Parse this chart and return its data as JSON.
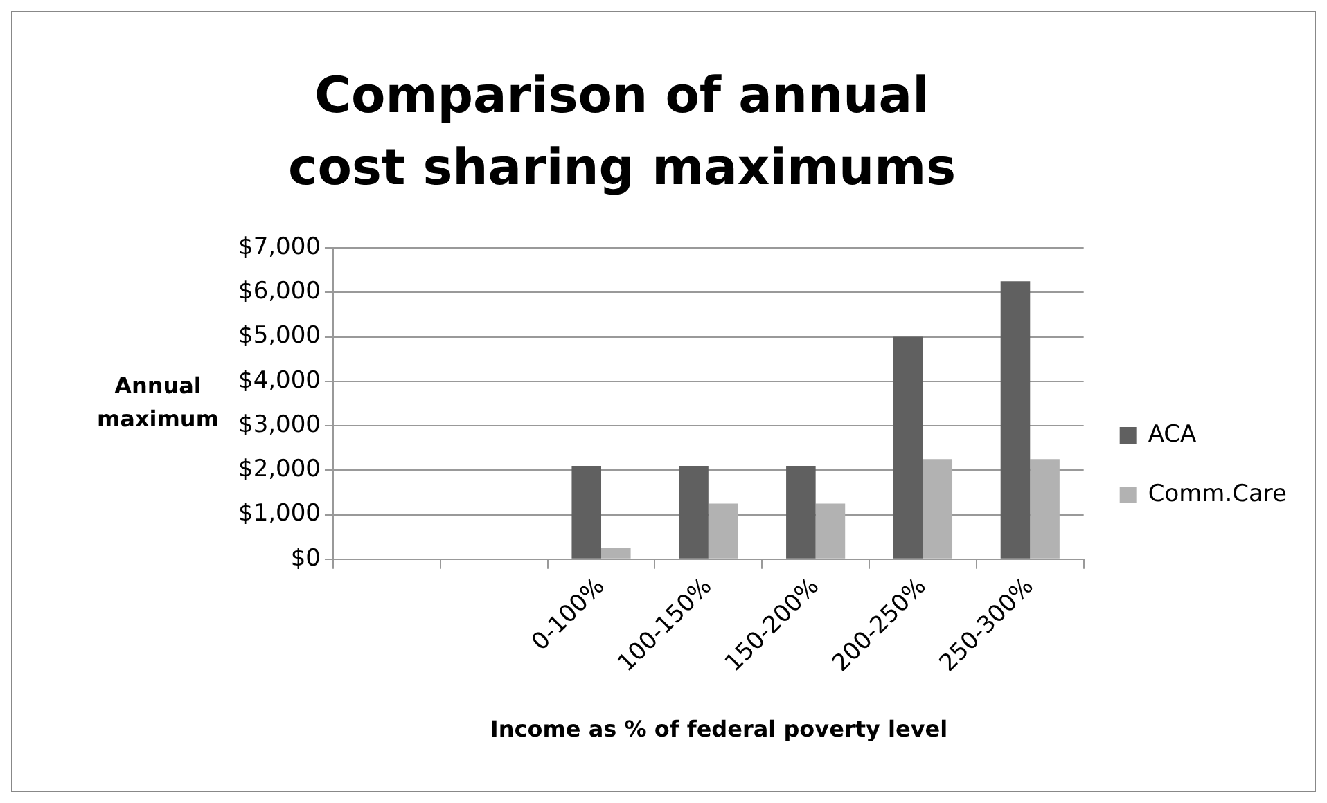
{
  "chart_data": {
    "type": "bar",
    "title": "Comparison of annual cost sharing maximums",
    "xlabel": "Income as % of federal poverty level",
    "ylabel": "Annual maximum",
    "categories": [
      null,
      null,
      "0-100%",
      "100-150%",
      "150-200%",
      "200-250%",
      "250-300%"
    ],
    "series": [
      {
        "name": "ACA",
        "color": "#606060",
        "values": [
          null,
          null,
          2100,
          2100,
          2100,
          5000,
          6250
        ]
      },
      {
        "name": "Comm.Care",
        "color": "#b2b2b2",
        "values": [
          null,
          null,
          250,
          1250,
          1250,
          2250,
          2250
        ]
      }
    ],
    "ylim": [
      0,
      7000
    ],
    "yticks": [
      {
        "value": 0,
        "label": "$0"
      },
      {
        "value": 1000,
        "label": "$1,000"
      },
      {
        "value": 2000,
        "label": "$2,000"
      },
      {
        "value": 3000,
        "label": "$3,000"
      },
      {
        "value": 4000,
        "label": "$4,000"
      },
      {
        "value": 5000,
        "label": "$5,000"
      },
      {
        "value": 6000,
        "label": "$6,000"
      },
      {
        "value": 7000,
        "label": "$7,000"
      }
    ],
    "grid": "y",
    "legend": "right"
  }
}
